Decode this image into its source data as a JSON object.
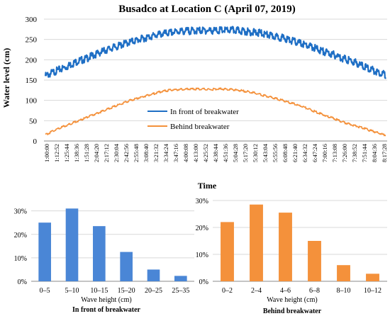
{
  "chart_data": [
    {
      "type": "line",
      "title": "Busadco at Location C (April 07, 2019)",
      "xlabel": "Time",
      "ylabel": "Water level (cm)",
      "ylim": [
        0,
        300
      ],
      "y_ticks": [
        "0",
        "50",
        "100",
        "150",
        "200",
        "250",
        "300"
      ],
      "x_ticks": [
        "1:00:00",
        "1:12:52",
        "1:25:44",
        "1:38:36",
        "1:51:28",
        "2:04:20",
        "2:17:12",
        "2:30:04",
        "2:42:56",
        "2:55:48",
        "3:08:40",
        "3:21:32",
        "3:34:24",
        "3:47:16",
        "4:00:08",
        "4:13:00",
        "4:25:52",
        "4:38:44",
        "4:51:36",
        "5:04:28",
        "5:17:20",
        "5:30:12",
        "5:43:04",
        "5:55:56",
        "6:08:48",
        "6:21:40",
        "6:34:32",
        "6:47:24",
        "7:00:16",
        "7:13:08",
        "7:26:00",
        "7:38:52",
        "7:51:44",
        "8:04:36",
        "8:17:28"
      ],
      "grid": true,
      "legend_position": "inside-center-right",
      "series": [
        {
          "name": "In front of breakwater",
          "color": "#1f6fc5",
          "values": [
            160,
            172,
            182,
            195,
            203,
            215,
            225,
            233,
            242,
            249,
            256,
            262,
            266,
            270,
            271,
            272,
            272,
            272,
            273,
            271,
            268,
            265,
            258,
            254,
            246,
            238,
            230,
            220,
            212,
            202,
            194,
            182,
            172,
            163
          ]
        },
        {
          "name": "Behind breakwater",
          "color": "#f4913b",
          "values": [
            15,
            28,
            38,
            48,
            58,
            68,
            78,
            88,
            98,
            106,
            113,
            120,
            125,
            127,
            128,
            128,
            127,
            128,
            127,
            124,
            120,
            113,
            107,
            100,
            92,
            84,
            74,
            64,
            55,
            45,
            38,
            30,
            22,
            14
          ]
        }
      ]
    },
    {
      "type": "bar",
      "title": "In front of breakwater",
      "xlabel": "Wave height (cm)",
      "ylim": [
        0,
        32
      ],
      "y_ticks": [
        "0%",
        "10%",
        "20%",
        "30%"
      ],
      "color": "#4a86d6",
      "categories": [
        "0–5",
        "5–10",
        "10–15",
        "15–20",
        "20–25",
        "25–35"
      ],
      "values": [
        25,
        31,
        23.5,
        12.5,
        5,
        2.3
      ]
    },
    {
      "type": "bar",
      "title": "Behind breakwater",
      "xlabel": "Wave height (cm)",
      "ylim": [
        0,
        30
      ],
      "y_ticks": [
        "0%",
        "10%",
        "20%",
        "30%"
      ],
      "color": "#f4913b",
      "categories": [
        "0–2",
        "2–4",
        "4–6",
        "6–8",
        "8–10",
        "10–12"
      ],
      "values": [
        22,
        28.5,
        25.5,
        15,
        6,
        2.8
      ]
    }
  ]
}
